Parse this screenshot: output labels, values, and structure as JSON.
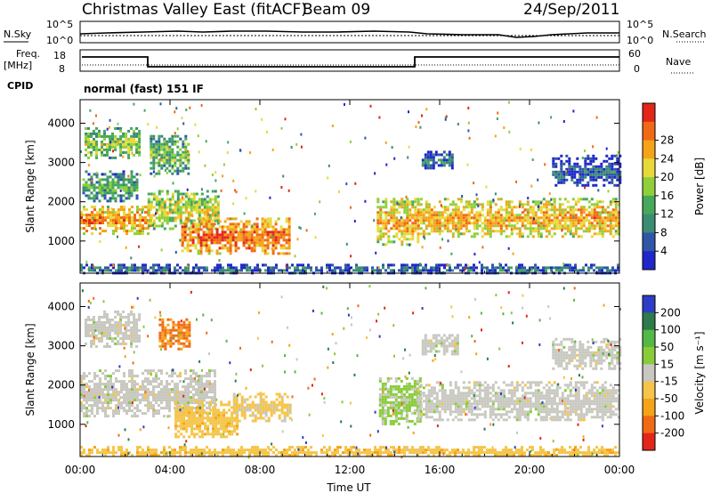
{
  "header": {
    "station": "Christmas Valley East (fitACF)",
    "beam": "Beam 09",
    "date": "24/Sep/2011"
  },
  "strip_labels": {
    "nsky": "N.Sky",
    "nsky_scale_top": "10^5",
    "nsky_scale_bottom": "10^0",
    "nsearch": "N.Search",
    "nsearch_scale_top": "10^5",
    "nsearch_scale_bottom": "10^0",
    "freq": "Freq.",
    "freq_unit": "[MHz]",
    "freq_top": "18",
    "freq_bottom": "8",
    "nave": "Nave",
    "nave_top": "60",
    "nave_bottom": "0",
    "cpid": "CPID",
    "cpid_value": "normal (fast) 151 IF"
  },
  "colors": {
    "power_scale": [
      "#1f27c9",
      "#2f56a8",
      "#3b8c73",
      "#46a85a",
      "#8fd03a",
      "#e8d93b",
      "#f5a319",
      "#f06a16",
      "#e2261a"
    ],
    "velocity_scale": [
      "#2e3ec4",
      "#2e7a4a",
      "#54b845",
      "#88cc3a",
      "#c8c8c0",
      "#f5c54a",
      "#f5a319",
      "#f06a16",
      "#e2261a"
    ]
  },
  "chart_data": [
    {
      "type": "heatmap",
      "title": "",
      "xlabel": "Time UT",
      "ylabel": "Slant Range [km]",
      "x_ticks": [
        "00:00",
        "04:00",
        "08:00",
        "12:00",
        "16:00",
        "20:00",
        "00:00"
      ],
      "y_ticks": [
        "1000",
        "2000",
        "3000",
        "4000"
      ],
      "xlim": [
        0,
        24
      ],
      "ylim": [
        180,
        4600
      ],
      "colorbar": {
        "label": "Power [dB]",
        "ticks": [
          "4",
          "8",
          "12",
          "16",
          "20",
          "24",
          "28"
        ],
        "range": [
          0,
          30
        ]
      },
      "regions": [
        {
          "t0": 0.0,
          "t1": 3.1,
          "r0": 1200,
          "r1": 1900,
          "value": 24
        },
        {
          "t0": 0.1,
          "t1": 2.5,
          "r0": 2000,
          "r1": 2800,
          "value": 12
        },
        {
          "t0": 0.2,
          "t1": 2.6,
          "r0": 3100,
          "r1": 3900,
          "value": 16
        },
        {
          "t0": 3.0,
          "t1": 6.2,
          "r0": 1300,
          "r1": 2300,
          "value": 18
        },
        {
          "t0": 3.1,
          "t1": 4.8,
          "r0": 2700,
          "r1": 3700,
          "value": 14
        },
        {
          "t0": 4.5,
          "t1": 9.3,
          "r0": 700,
          "r1": 1600,
          "value": 26
        },
        {
          "t0": 13.2,
          "t1": 15.1,
          "r0": 900,
          "r1": 2100,
          "value": 22
        },
        {
          "t0": 15.0,
          "t1": 24.0,
          "r0": 1100,
          "r1": 2100,
          "value": 22
        },
        {
          "t0": 15.2,
          "t1": 16.6,
          "r0": 2800,
          "r1": 3300,
          "value": 8
        },
        {
          "t0": 21.0,
          "t1": 24.0,
          "r0": 2400,
          "r1": 3200,
          "value": 6
        },
        {
          "t0": 0.0,
          "t1": 24.0,
          "r0": 200,
          "r1": 420,
          "value": 8
        }
      ]
    },
    {
      "type": "heatmap",
      "title": "",
      "xlabel": "Time UT",
      "ylabel": "Slant Range [km]",
      "x_ticks": [
        "00:00",
        "04:00",
        "08:00",
        "12:00",
        "16:00",
        "20:00",
        "00:00"
      ],
      "y_ticks": [
        "1000",
        "2000",
        "3000",
        "4000"
      ],
      "xlim": [
        0,
        24
      ],
      "ylim": [
        180,
        4600
      ],
      "colorbar": {
        "label": "Velocity [m s⁻¹]",
        "ticks": [
          "200",
          "100",
          "50",
          "15",
          "-15",
          "-50",
          "-100",
          "-200"
        ],
        "range": [
          -250,
          250
        ]
      },
      "regions": [
        {
          "t0": 0.0,
          "t1": 6.0,
          "r0": 1200,
          "r1": 2400,
          "value": 0
        },
        {
          "t0": 0.2,
          "t1": 2.6,
          "r0": 3000,
          "r1": 3900,
          "value": 0
        },
        {
          "t0": 3.5,
          "t1": 4.9,
          "r0": 2900,
          "r1": 3700,
          "value": -150
        },
        {
          "t0": 4.2,
          "t1": 7.0,
          "r0": 700,
          "r1": 1600,
          "value": -60
        },
        {
          "t0": 6.8,
          "t1": 9.3,
          "r0": 1100,
          "r1": 1800,
          "value": -40
        },
        {
          "t0": 13.3,
          "t1": 15.1,
          "r0": 1000,
          "r1": 2200,
          "value": 40
        },
        {
          "t0": 15.0,
          "t1": 24.0,
          "r0": 1100,
          "r1": 2100,
          "value": 0
        },
        {
          "t0": 15.2,
          "t1": 16.8,
          "r0": 2800,
          "r1": 3300,
          "value": 0
        },
        {
          "t0": 21.0,
          "t1": 24.0,
          "r0": 2400,
          "r1": 3200,
          "value": 0
        },
        {
          "t0": 0.0,
          "t1": 24.0,
          "r0": 200,
          "r1": 450,
          "value": -60
        }
      ]
    }
  ]
}
